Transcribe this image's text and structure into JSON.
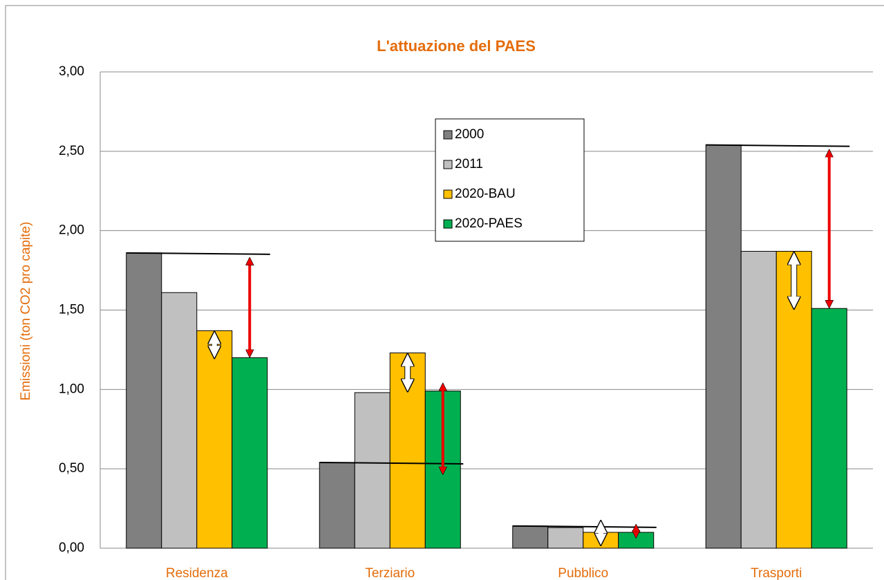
{
  "chart_data": {
    "type": "bar",
    "title": "L'attuazione del PAES",
    "y_label": "Emissioni (ton CO2 pro capite)",
    "categories": [
      "Residenza",
      "Terziario",
      "Pubblico",
      "Trasporti"
    ],
    "series": [
      {
        "name": "2000",
        "color": "#808080",
        "values": [
          1.86,
          0.54,
          0.14,
          2.54
        ]
      },
      {
        "name": "2011",
        "color": "#c0c0c0",
        "values": [
          1.61,
          0.98,
          0.13,
          1.87
        ]
      },
      {
        "name": "2020-BAU",
        "color": "#ffc000",
        "values": [
          1.37,
          1.23,
          0.1,
          1.87
        ]
      },
      {
        "name": "2020-PAES",
        "color": "#00b050",
        "values": [
          1.2,
          0.99,
          0.1,
          1.51
        ]
      }
    ],
    "ylim": [
      0,
      3
    ],
    "yticks": [
      {
        "value": 0,
        "label": "0,00"
      },
      {
        "value": 0.5,
        "label": "0,50"
      },
      {
        "value": 1,
        "label": "1,00"
      },
      {
        "value": 1.5,
        "label": "1,50"
      },
      {
        "value": 2,
        "label": "2,00"
      },
      {
        "value": 2.5,
        "label": "2,50"
      },
      {
        "value": 3,
        "label": "3,00"
      }
    ],
    "grid": true
  }
}
